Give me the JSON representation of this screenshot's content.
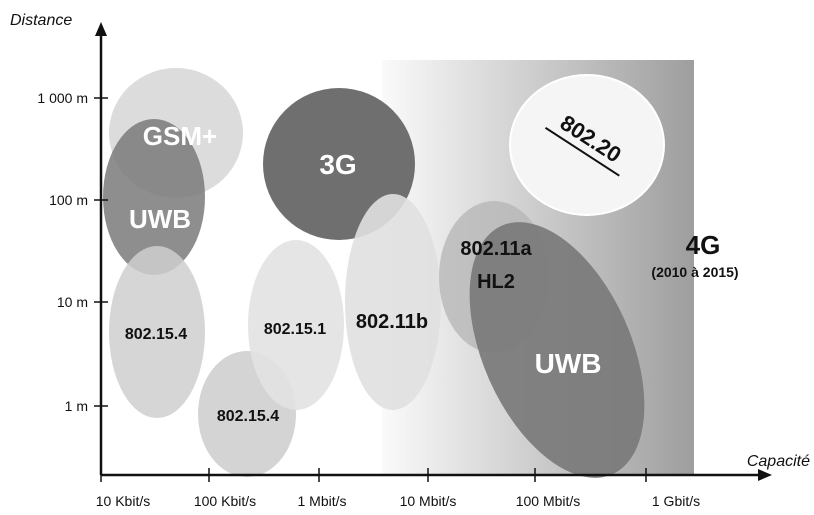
{
  "axes": {
    "y_title": "Distance",
    "x_title": "Capacité",
    "y_ticks": [
      "1 000 m",
      "100 m",
      "10 m",
      "1 m"
    ],
    "x_ticks": [
      "10 Kbit/s",
      "100 Kbit/s",
      "1 Mbit/s",
      "10 Mbit/s",
      "100 Mbit/s",
      "1 Gbit/s"
    ]
  },
  "zone_4g": {
    "label": "4G",
    "period": "(2010 à 2015)"
  },
  "technologies": {
    "gsm_plus": "GSM+",
    "uwb_left": "UWB",
    "g3": "3G",
    "ieee_802_20": "802.20",
    "ieee_802_15_4_a": "802.15.4",
    "ieee_802_15_4_b": "802.15.4",
    "ieee_802_15_1": "802.15.1",
    "ieee_802_11b": "802.11b",
    "ieee_802_11a_line1": "802.11a",
    "ieee_802_11a_line2": "HL2",
    "uwb_right": "UWB"
  },
  "colors": {
    "dark": "#6e6e6e",
    "mid": "#a9a9a9",
    "light": "#d8d8d8",
    "lightest": "#ebebeb",
    "zone_dark": "#a0a0a0",
    "zone_light": "#f7f7f7"
  }
}
